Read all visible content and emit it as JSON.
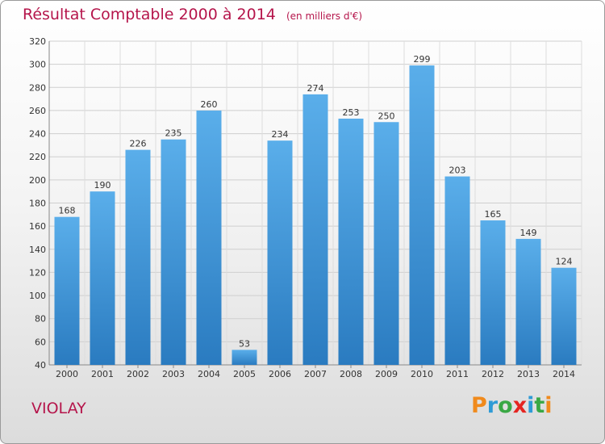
{
  "chart_data": {
    "type": "bar",
    "title": "Résultat Comptable 2000 à 2014",
    "subtitle": "(en milliers d'€)",
    "categories": [
      "2000",
      "2001",
      "2002",
      "2003",
      "2004",
      "2005",
      "2006",
      "2007",
      "2008",
      "2009",
      "2010",
      "2011",
      "2012",
      "2013",
      "2014"
    ],
    "values": [
      168,
      190,
      226,
      235,
      260,
      53,
      234,
      274,
      253,
      250,
      299,
      203,
      165,
      149,
      124
    ],
    "ylim": [
      40,
      320
    ],
    "yticks": [
      40,
      60,
      80,
      100,
      120,
      140,
      160,
      180,
      200,
      220,
      240,
      260,
      280,
      300,
      320
    ],
    "xlabel": "",
    "ylabel": "",
    "grid": true,
    "bar_color_top": "#5aaeea",
    "bar_color_bottom": "#2a7bc0"
  },
  "location": "VIOLAY",
  "brand": {
    "letters": [
      "P",
      "r",
      "o",
      "x",
      "i",
      "t",
      "i"
    ],
    "colors": [
      "#f08a1c",
      "#2f9bd6",
      "#3aa845",
      "#e52521",
      "#2f9bd6",
      "#3aa845",
      "#f08a1c"
    ]
  }
}
